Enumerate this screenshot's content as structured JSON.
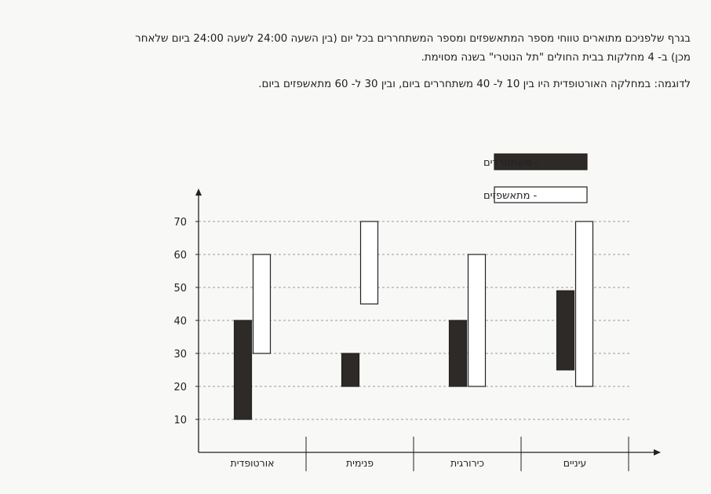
{
  "intro": {
    "line1": "בגרף שלפניכם מתוארים טווחי מספר המתאשפזים ומספר המשתחררים בכל יום (בין השעה 24:00 לשעה 24:00 ביום שלאחר מכן) ב- 4 מחלקות בבית החולים \"תל הנוטרי\" בשנה מסוימת.",
    "line2": "לדוגמה: במחלקה האורטופדית היו בין 10 ל- 40 משתחררים ביום, ובין 30 ל- 60 מתאשפזים ביום."
  },
  "colors": {
    "released": "#2d2a27",
    "admitted": "#ffffff",
    "outline": "#222222",
    "grid": "#9a9a9a"
  },
  "chart_data": {
    "type": "bar",
    "subtype": "floating-range",
    "categories": [
      "אורטופדית",
      "פנימית",
      "כירורגית",
      "עיניים"
    ],
    "series": [
      {
        "name": "- משתחררים",
        "ranges": [
          [
            10,
            40
          ],
          [
            20,
            30
          ],
          [
            20,
            40
          ],
          [
            25,
            49
          ]
        ]
      },
      {
        "name": "- מתאשפזים",
        "ranges": [
          [
            30,
            60
          ],
          [
            45,
            70
          ],
          [
            20,
            60
          ],
          [
            20,
            70
          ]
        ]
      }
    ],
    "yticks": [
      10,
      20,
      30,
      40,
      50,
      60,
      70
    ],
    "ylim": [
      0,
      78
    ],
    "grid": true,
    "legend": "top-right"
  }
}
